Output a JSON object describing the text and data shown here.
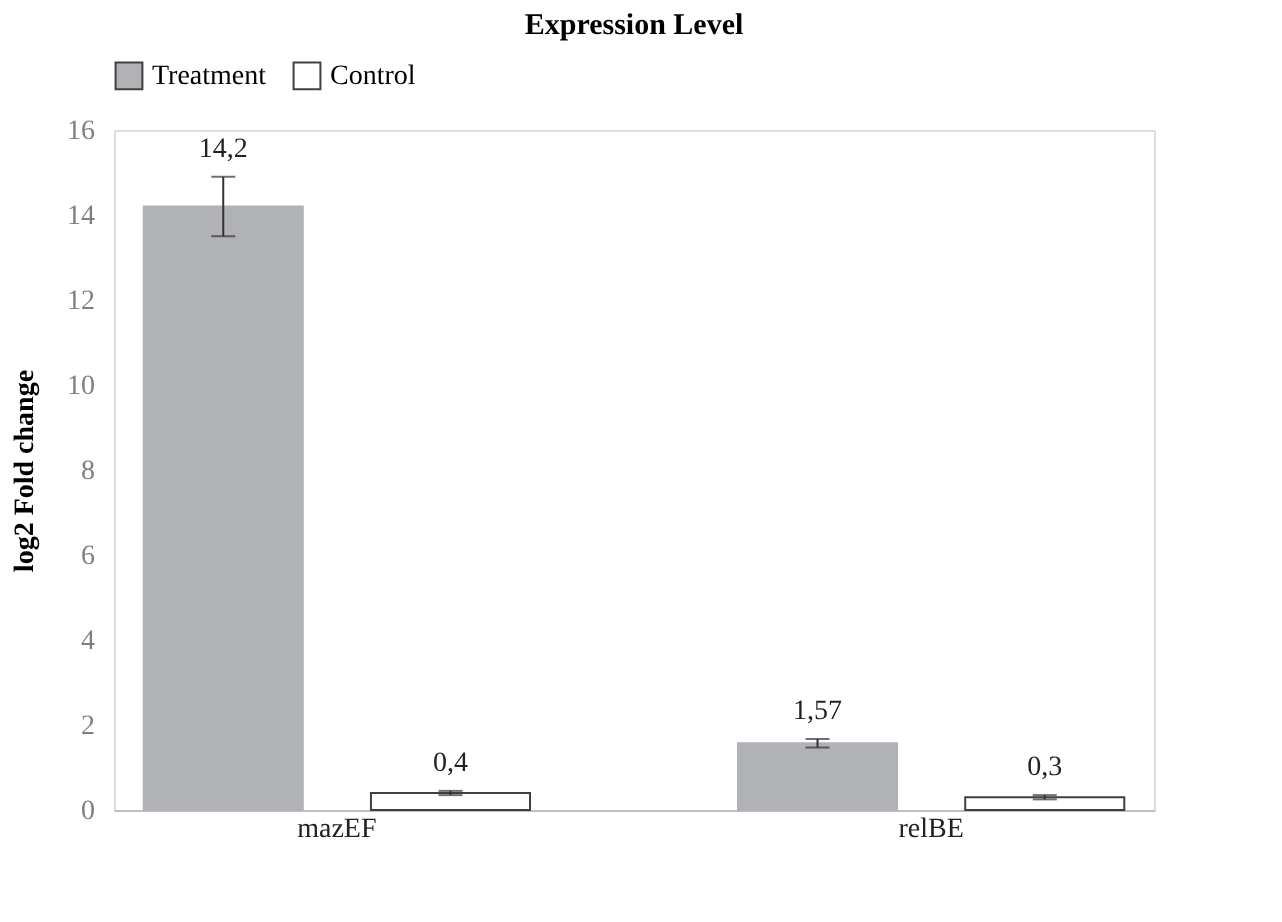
{
  "chart_data": {
    "type": "bar",
    "title": "Expression Level",
    "ylabel": "log2 Fold change",
    "categories": [
      "mazEF",
      "relBE"
    ],
    "series": [
      {
        "name": "Treatment",
        "color": "#b1b2b6",
        "values": [
          14.2,
          1.57
        ],
        "errors": [
          0.7,
          0.1
        ],
        "value_labels": [
          "14,2",
          "1,57"
        ]
      },
      {
        "name": "Control",
        "color": "#ffffff",
        "values": [
          0.4,
          0.3
        ],
        "errors": [
          0.05,
          0.05
        ],
        "value_labels": [
          "0,4",
          "0,3"
        ]
      }
    ],
    "ylim": [
      0,
      16
    ],
    "yticks": [
      0,
      2,
      4,
      6,
      8,
      10,
      12,
      14,
      16
    ],
    "grid": false,
    "legend": "top"
  }
}
